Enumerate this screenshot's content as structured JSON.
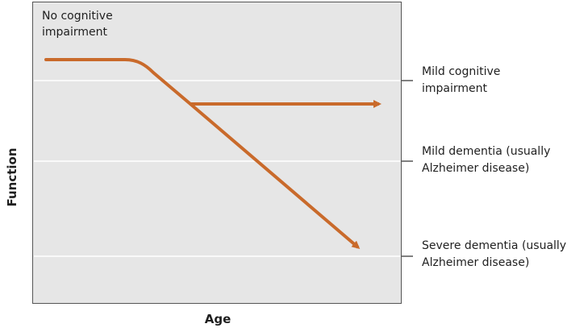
{
  "diagram": {
    "y_axis_label": "Function",
    "x_axis_label": "Age",
    "start_label": [
      "No cognitive",
      "impairment"
    ],
    "levels": [
      {
        "id": "mild-cognitive-impairment",
        "lines": [
          "Mild cognitive",
          "impairment"
        ]
      },
      {
        "id": "mild-dementia",
        "lines": [
          "Mild dementia (usually",
          "Alzheimer disease)"
        ]
      },
      {
        "id": "severe-dementia",
        "lines": [
          "Severe dementia (usually",
          "Alzheimer disease)"
        ]
      }
    ],
    "colors": {
      "curve": "#c96a2b",
      "background": "#e6e6e6",
      "gridline": "#ffffff"
    }
  }
}
